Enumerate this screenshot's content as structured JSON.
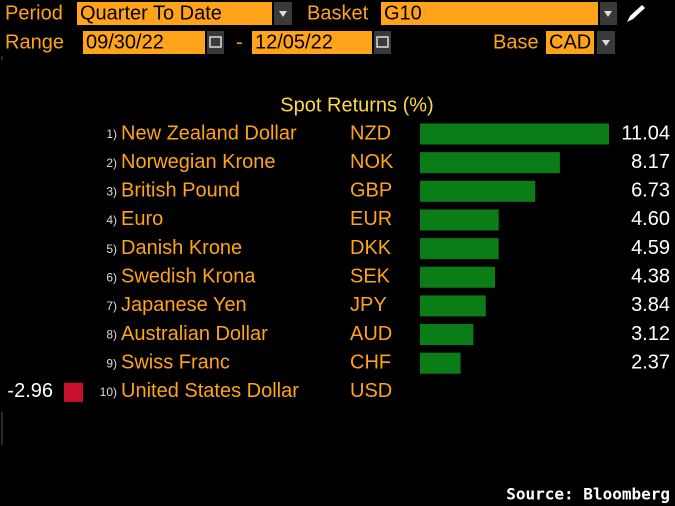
{
  "header": {
    "period_label": "Period",
    "period": "Quarter To Date",
    "basket_label": "Basket",
    "basket": "G10",
    "range_label": "Range",
    "range_start": "09/30/22",
    "range_sep": "-",
    "range_end": "12/05/22",
    "base_label": "Base",
    "base": "CAD"
  },
  "chart_data": {
    "type": "bar",
    "title": "Spot Returns (%)",
    "ranks": [
      "1)",
      "2)",
      "3)",
      "4)",
      "5)",
      "6)",
      "7)",
      "8)",
      "9)",
      "10)"
    ],
    "categories": [
      "New Zealand Dollar",
      "Norwegian Krone",
      "British Pound",
      "Euro",
      "Danish Krone",
      "Swedish Krona",
      "Japanese Yen",
      "Australian Dollar",
      "Swiss Franc",
      "United States Dollar"
    ],
    "codes": [
      "NZD",
      "NOK",
      "GBP",
      "EUR",
      "DKK",
      "SEK",
      "JPY",
      "AUD",
      "CHF",
      "USD"
    ],
    "values": [
      11.04,
      8.17,
      6.73,
      4.6,
      4.59,
      4.38,
      3.84,
      3.12,
      2.37,
      -2.96
    ],
    "value_labels": [
      "11.04",
      "8.17",
      "6.73",
      "4.60",
      "4.59",
      "4.38",
      "3.84",
      "3.12",
      "2.37",
      "-2.96"
    ],
    "positive_color": "#0b7d16",
    "negative_color": "#c8102e"
  },
  "footer": {
    "source": "Source: Bloomberg"
  }
}
